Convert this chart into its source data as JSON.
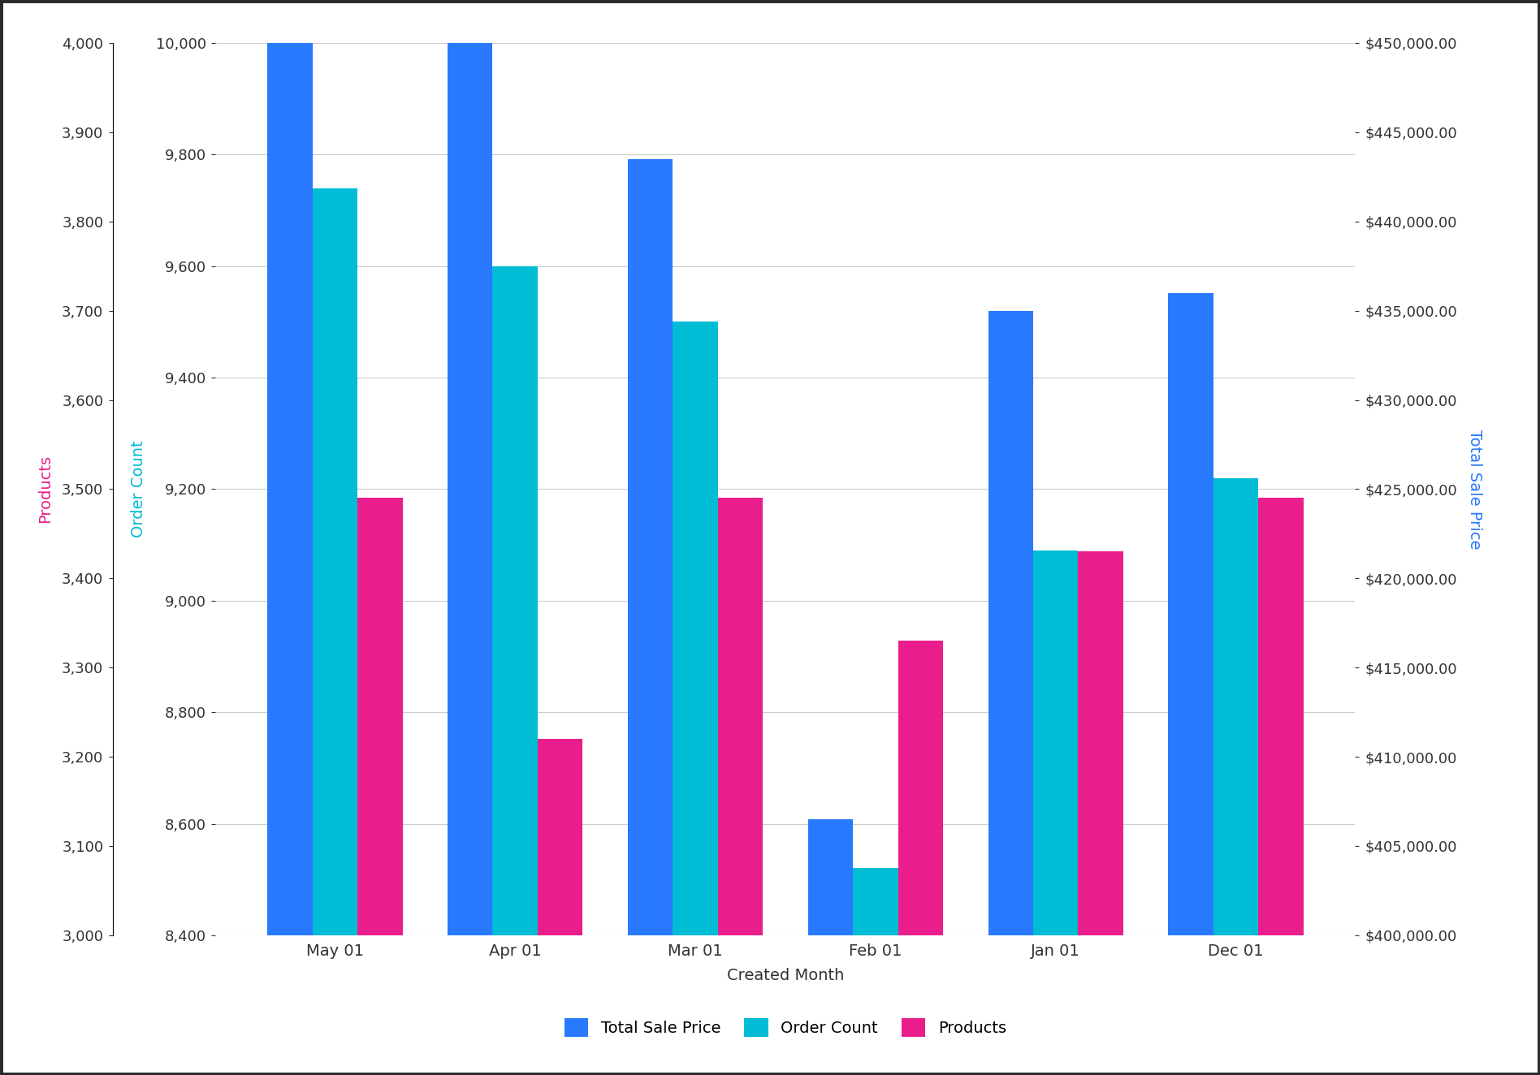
{
  "categories": [
    "May 01",
    "Apr 01",
    "Mar 01",
    "Feb 01",
    "Jan 01",
    "Dec 01"
  ],
  "total_sale_price": [
    450000,
    450000,
    443500,
    406500,
    435000,
    436000
  ],
  "order_count": [
    9740,
    9600,
    9500,
    8520,
    9090,
    9220
  ],
  "products": [
    3490,
    3220,
    3490,
    3330,
    3430,
    3490
  ],
  "blue_color": "#2979FF",
  "cyan_color": "#00BCD4",
  "pink_color": "#E91E8C",
  "background_color": "#FFFFFF",
  "border_color": "#2a2a2a",
  "xlabel": "Created Month",
  "ylabel_left": "Products",
  "ylabel_middle": "Order Count",
  "ylabel_right": "Total Sale Price",
  "ylabel_left_color": "#E91E8C",
  "ylabel_middle_color": "#00BCD4",
  "ylabel_right_color": "#2979FF",
  "legend_labels": [
    "Total Sale Price",
    "Order Count",
    "Products"
  ],
  "ylim_products": [
    3000,
    4000
  ],
  "ylim_order_count": [
    8400,
    10000
  ],
  "ylim_sale_price": [
    400000,
    450000
  ],
  "prod_yticks": [
    3000,
    3100,
    3200,
    3300,
    3400,
    3500,
    3600,
    3700,
    3800,
    3900,
    4000
  ],
  "oc_yticks": [
    8400,
    8600,
    8800,
    9000,
    9200,
    9400,
    9600,
    9800,
    10000
  ],
  "sp_yticks": [
    400000,
    405000,
    410000,
    415000,
    420000,
    425000,
    430000,
    435000,
    440000,
    445000,
    450000
  ],
  "bar_width": 0.25,
  "figsize": [
    18.96,
    13.24
  ],
  "dpi": 100
}
